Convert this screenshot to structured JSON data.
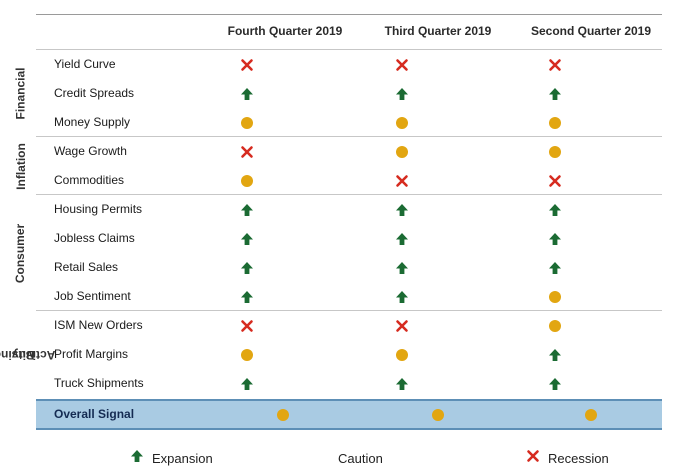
{
  "columns": [
    "Fourth Quarter 2019",
    "Third Quarter 2019",
    "Second Quarter 2019"
  ],
  "groups": [
    {
      "label": "Financial",
      "rows": [
        {
          "label": "Yield Curve",
          "signals": [
            "recession",
            "recession",
            "recession"
          ]
        },
        {
          "label": "Credit Spreads",
          "signals": [
            "expansion",
            "expansion",
            "expansion"
          ]
        },
        {
          "label": "Money Supply",
          "signals": [
            "caution",
            "caution",
            "caution"
          ]
        }
      ]
    },
    {
      "label": "Inflation",
      "rows": [
        {
          "label": "Wage Growth",
          "signals": [
            "recession",
            "caution",
            "caution"
          ]
        },
        {
          "label": "Commodities",
          "signals": [
            "caution",
            "recession",
            "recession"
          ]
        }
      ]
    },
    {
      "label": "Consumer",
      "rows": [
        {
          "label": "Housing Permits",
          "signals": [
            "expansion",
            "expansion",
            "expansion"
          ]
        },
        {
          "label": "Jobless Claims",
          "signals": [
            "expansion",
            "expansion",
            "expansion"
          ]
        },
        {
          "label": "Retail Sales",
          "signals": [
            "expansion",
            "expansion",
            "expansion"
          ]
        },
        {
          "label": "Job Sentiment",
          "signals": [
            "expansion",
            "expansion",
            "caution"
          ]
        }
      ]
    },
    {
      "label": "Business Activity",
      "label_lines": [
        "Business",
        "Activity"
      ],
      "rows": [
        {
          "label": "ISM New Orders",
          "signals": [
            "recession",
            "recession",
            "caution"
          ]
        },
        {
          "label": "Profit Margins",
          "signals": [
            "caution",
            "caution",
            "expansion"
          ]
        },
        {
          "label": "Truck Shipments",
          "signals": [
            "expansion",
            "expansion",
            "expansion"
          ]
        }
      ]
    }
  ],
  "overall": {
    "label": "Overall Signal",
    "signals": [
      "caution",
      "caution",
      "caution"
    ]
  },
  "legend": {
    "expansion": "Expansion",
    "caution": "Caution",
    "recession": "Recession"
  },
  "colors": {
    "expansion": "#1b6b33",
    "caution": "#e2a611",
    "recession": "#d62b1f",
    "overall_band": "#a9cbe3"
  },
  "icons": {
    "expansion": "up-arrow-icon",
    "caution": "dot-icon",
    "recession": "x-icon"
  }
}
